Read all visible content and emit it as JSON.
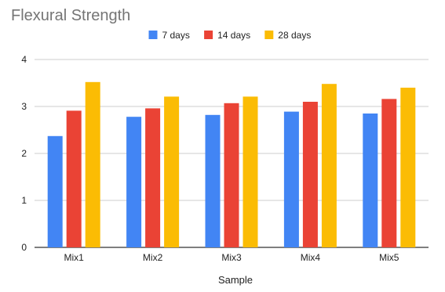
{
  "chart_data": {
    "type": "bar",
    "title": "Flexural Strength",
    "xlabel": "Sample",
    "ylabel": "",
    "categories": [
      "Mix1",
      "Mix2",
      "Mix3",
      "Mix4",
      "Mix5"
    ],
    "series": [
      {
        "name": "7 days",
        "color": "#4285F4",
        "values": [
          2.37,
          2.78,
          2.82,
          2.89,
          2.85
        ]
      },
      {
        "name": "14 days",
        "color": "#EA4335",
        "values": [
          2.91,
          2.96,
          3.07,
          3.1,
          3.16
        ]
      },
      {
        "name": "28 days",
        "color": "#FBBC04",
        "values": [
          3.52,
          3.21,
          3.21,
          3.48,
          3.4
        ]
      }
    ],
    "ylim": [
      0,
      4
    ],
    "yticks": [
      "0",
      "1",
      "2",
      "3",
      "4"
    ],
    "grid": true,
    "legend_position": "top-center"
  }
}
